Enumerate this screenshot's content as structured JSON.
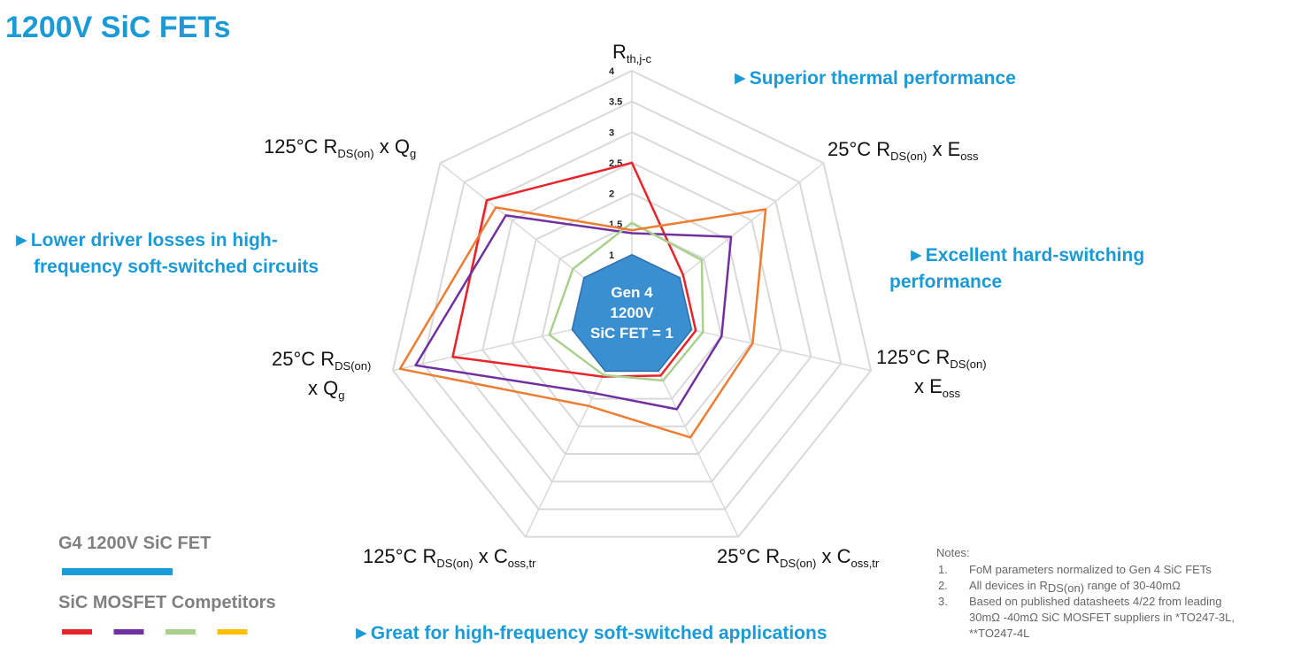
{
  "chart_data": {
    "type": "radar",
    "title": "1200V SiC FETs",
    "axes": [
      {
        "lines": [
          [
            "R",
            "th,j-c"
          ]
        ]
      },
      {
        "lines": [
          [
            "25°C R",
            "DS(on)",
            " x E",
            "oss"
          ]
        ]
      },
      {
        "lines": [
          [
            "125°C R",
            "DS(on)"
          ],
          [
            "x E",
            "oss"
          ]
        ]
      },
      {
        "lines": [
          [
            "25°C R",
            "DS(on)",
            " x C",
            "oss,tr"
          ]
        ]
      },
      {
        "lines": [
          [
            "125°C R",
            "DS(on)",
            " x C",
            "oss,tr"
          ]
        ]
      },
      {
        "lines": [
          [
            "25°C R",
            "DS(on)"
          ],
          [
            "x Q",
            "g"
          ]
        ]
      },
      {
        "lines": [
          [
            "125°C R",
            "DS(on)",
            " x Q",
            "g"
          ]
        ]
      }
    ],
    "ylim": [
      0,
      4
    ],
    "yticks": [
      1,
      1.5,
      2,
      2.5,
      3,
      3.5,
      4
    ],
    "grid": true,
    "reference": {
      "name": "G4 1200V SiC FET",
      "color": "#1a9ad6",
      "fill": "#3a8fd0",
      "values": [
        1,
        1,
        1,
        1,
        1,
        1,
        1
      ],
      "center_label": [
        "Gen 4",
        "1200V",
        "SiC FET = 1"
      ]
    },
    "competitors_label": "SiC MOSFET Competitors",
    "series": [
      {
        "color": "#e8232a",
        "legend_color": "#e8232a",
        "values": [
          2.5,
          1.07,
          1.07,
          1.08,
          1.1,
          3.0,
          3.03
        ]
      },
      {
        "color": "#7030a0",
        "legend_color": "#7030a0",
        "values": [
          1.35,
          2.07,
          1.5,
          1.69,
          1.4,
          3.62,
          2.63
        ]
      },
      {
        "color": "#a9d18e",
        "legend_color": "#a9d18e",
        "values": [
          1.52,
          1.46,
          1.19,
          1.17,
          1.07,
          1.38,
          1.23
        ]
      },
      {
        "color": "#ed7d31",
        "legend_color": "#ffc000",
        "values": [
          1.4,
          2.79,
          2.02,
          2.2,
          1.63,
          3.88,
          2.84
        ]
      }
    ],
    "annotations": [
      {
        "lines": [
          "►Superior thermal performance"
        ]
      },
      {
        "lines": [
          "►Lower driver losses in high-",
          "frequency soft-switched circuits"
        ]
      },
      {
        "lines": [
          "►Excellent hard-switching",
          "performance"
        ]
      },
      {
        "lines": [
          "►Great for high-frequency soft-switched applications"
        ]
      }
    ],
    "notes": {
      "heading": "Notes:",
      "items": [
        {
          "number": "1.",
          "lines": [
            [
              "FoM parameters normalized to Gen 4 SiC FETs"
            ]
          ]
        },
        {
          "number": "2.",
          "lines": [
            [
              "All devices in R",
              "DS(on)",
              " range of 30-40mΩ"
            ]
          ]
        },
        {
          "number": "3.",
          "lines": [
            [
              "Based on published datasheets 4/22 from leading"
            ],
            [
              "30mΩ -40mΩ SiC MOSFET suppliers in *TO247-3L,"
            ],
            [
              "**TO247-4L"
            ]
          ]
        }
      ]
    }
  }
}
